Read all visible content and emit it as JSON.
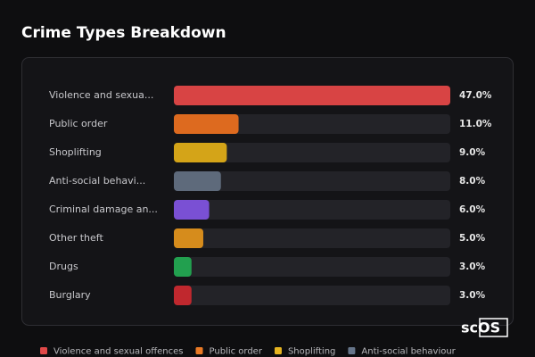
{
  "chart_data": {
    "type": "bar",
    "orientation": "horizontal",
    "title": "Crime Types Breakdown",
    "categories": [
      "Violence and sexua...",
      "Public order",
      "Shoplifting",
      "Anti-social behavi...",
      "Criminal damage an...",
      "Other theft",
      "Drugs",
      "Burglary"
    ],
    "values": [
      47.0,
      11.0,
      9.0,
      8.0,
      6.0,
      5.0,
      3.0,
      3.0
    ],
    "value_labels": [
      "47.0%",
      "11.0%",
      "9.0%",
      "8.0%",
      "6.0%",
      "5.0%",
      "3.0%",
      "3.0%"
    ],
    "colors": [
      "#d84444",
      "#dd6a1f",
      "#d4a418",
      "#5e6a7b",
      "#7a50d4",
      "#d68c1c",
      "#22a04f",
      "#c0282e"
    ],
    "xlim": [
      0,
      47
    ],
    "legend": [
      {
        "name": "Violence and sexual offences",
        "color": "#e04848"
      },
      {
        "name": "Public order",
        "color": "#ea7a25"
      },
      {
        "name": "Shoplifting",
        "color": "#e6b420"
      },
      {
        "name": "Anti-social behaviour",
        "color": "#66758a"
      }
    ],
    "watermark": "scOS"
  }
}
